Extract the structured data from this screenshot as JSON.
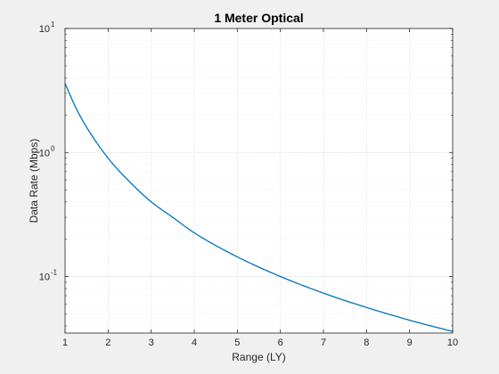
{
  "chart_data": {
    "type": "line",
    "title": "1 Meter Optical",
    "xlabel": "Range (LY)",
    "ylabel": "Data Rate (Mbps)",
    "xlim": [
      1,
      10
    ],
    "ylim": [
      0.035,
      10
    ],
    "yscale": "log",
    "grid": true,
    "x_ticks": [
      1,
      2,
      3,
      4,
      5,
      6,
      7,
      8,
      9,
      10
    ],
    "y_ticks": [
      {
        "value": 0.1,
        "base": "10",
        "exp": "-1"
      },
      {
        "value": 1,
        "base": "10",
        "exp": "0"
      },
      {
        "value": 10,
        "base": "10",
        "exp": "1"
      }
    ],
    "series": [
      {
        "color": "#0072bd",
        "x": [
          1,
          1.25,
          1.5,
          2,
          2.5,
          3,
          3.5,
          4,
          5,
          6,
          7,
          8,
          9,
          10
        ],
        "y": [
          3.6,
          2.3,
          1.6,
          0.9,
          0.58,
          0.4,
          0.3,
          0.225,
          0.144,
          0.1,
          0.0734,
          0.0563,
          0.0444,
          0.036
        ]
      }
    ]
  }
}
